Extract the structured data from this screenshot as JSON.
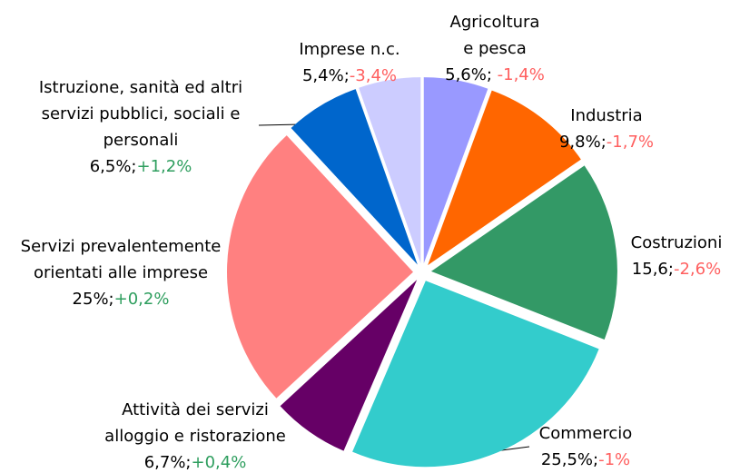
{
  "chart_data": {
    "type": "pie",
    "categories": [
      [
        "Agricoltura",
        "e pesca"
      ],
      [
        "Industria"
      ],
      [
        "Costruzioni"
      ],
      [
        "Commercio"
      ],
      [
        "Attività dei servizi",
        "alloggio e ristorazione"
      ],
      [
        "Servizi prevalentemente",
        "orientati alle imprese"
      ],
      [
        "Istruzione, sanità ed altri",
        "servizi pubblici, sociali e",
        "personali"
      ],
      [
        "Imprese n.c."
      ]
    ],
    "values": [
      5.6,
      9.8,
      15.6,
      25.5,
      6.7,
      25,
      6.5,
      5.4
    ],
    "value_labels": [
      "5,6%; ",
      "9,8%;",
      "15,6;",
      "25,5%;",
      "6,7%;",
      "25%;",
      "6,5%;",
      "5,4%;"
    ],
    "changes": [
      -1.4,
      -1.7,
      -2.6,
      -1,
      0.4,
      0.2,
      1.2,
      -3.4
    ],
    "change_labels": [
      "-1,4%",
      "-1,7%",
      "-2,6%",
      "-1%",
      "+0,4%",
      "+0,2%",
      "+1,2%",
      "-3,4%"
    ],
    "colors": [
      "#9999ff",
      "#ff6600",
      "#339966",
      "#33cccc",
      "#660066",
      "#ff8080",
      "#0066cc",
      "#ccccff"
    ],
    "negative_color": "#ff5f5f",
    "positive_color": "#2e9e5e"
  }
}
